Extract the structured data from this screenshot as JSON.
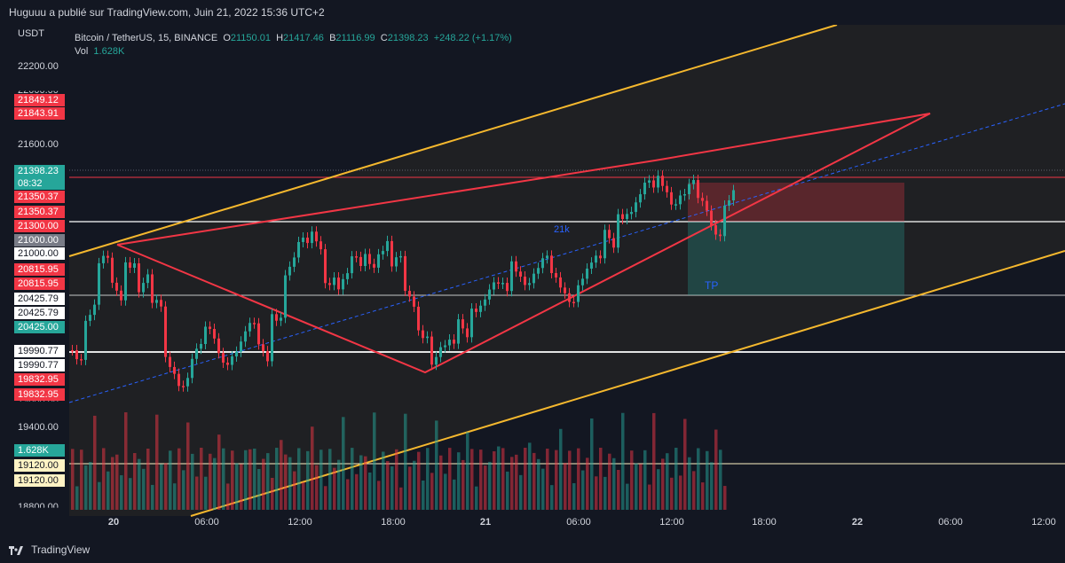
{
  "header": {
    "publish_line": "Huguuu a publié sur TradingView.com, Juin 21, 2022 15:36 UTC+2"
  },
  "legend": {
    "symbol": "Bitcoin / TetherUS, 15, BINANCE",
    "o_key": "O",
    "o_val": "21150.01",
    "h_key": "H",
    "h_val": "21417.46",
    "b_key": "B",
    "b_val": "21116.99",
    "c_key": "C",
    "c_val": "21398.23",
    "change": "+248.22 (+1.17%)",
    "vol_key": "Vol",
    "vol_val": "1.628K"
  },
  "yaxis": {
    "unit": "USDT",
    "ticks": [
      "22200.00",
      "21600.00",
      "19400.00"
    ],
    "partial_ticks": [
      "22000.00",
      "19600.00",
      "18800.00"
    ]
  },
  "price_tags": [
    {
      "label": "21849.12",
      "bg": "#f23645",
      "fg": "#ffffff"
    },
    {
      "label": "21843.91",
      "bg": "#f23645",
      "fg": "#ffffff"
    },
    {
      "label": "21398.23",
      "bg": "#26a69a",
      "fg": "#ffffff"
    },
    {
      "label": "08:32",
      "bg": "#26a69a",
      "fg": "#ffffff"
    },
    {
      "label": "21350.37",
      "bg": "#f23645",
      "fg": "#ffffff"
    },
    {
      "label": "21350.37",
      "bg": "#f23645",
      "fg": "#ffffff"
    },
    {
      "label": "21300.00",
      "bg": "#f23645",
      "fg": "#ffffff"
    },
    {
      "label": "21000.00",
      "bg": "#787b86",
      "fg": "#ffffff"
    },
    {
      "label": "21000.00",
      "bg": "#ffffff",
      "fg": "#131722"
    },
    {
      "label": "20815.95",
      "bg": "#f23645",
      "fg": "#ffffff"
    },
    {
      "label": "20815.95",
      "bg": "#f23645",
      "fg": "#ffffff"
    },
    {
      "label": "20425.79",
      "bg": "#ffffff",
      "fg": "#131722"
    },
    {
      "label": "20425.79",
      "bg": "#ffffff",
      "fg": "#131722"
    },
    {
      "label": "20425.00",
      "bg": "#26a69a",
      "fg": "#ffffff"
    },
    {
      "label": "19990.77",
      "bg": "#ffffff",
      "fg": "#131722"
    },
    {
      "label": "19990.77",
      "bg": "#ffffff",
      "fg": "#131722"
    },
    {
      "label": "19832.95",
      "bg": "#f23645",
      "fg": "#ffffff"
    },
    {
      "label": "19832.95",
      "bg": "#f23645",
      "fg": "#ffffff"
    },
    {
      "label": "1.628K",
      "bg": "#26a69a",
      "fg": "#ffffff"
    },
    {
      "label": "19120.00",
      "bg": "#fff3c4",
      "fg": "#131722"
    },
    {
      "label": "19120.00",
      "bg": "#fff3c4",
      "fg": "#131722"
    }
  ],
  "xaxis": {
    "labels": [
      "20",
      "06:00",
      "12:00",
      "18:00",
      "21",
      "06:00",
      "12:00",
      "18:00",
      "22",
      "06:00",
      "12:00"
    ]
  },
  "annotations": {
    "label_21k": "21k",
    "label_tp": "TP"
  },
  "footer": {
    "brand": "TradingView"
  },
  "colors": {
    "background": "#131722",
    "up": "#26a69a",
    "down": "#f23645",
    "channel": "#f5b82e",
    "wedge": "#f23645",
    "midline": "#2962ff"
  }
}
